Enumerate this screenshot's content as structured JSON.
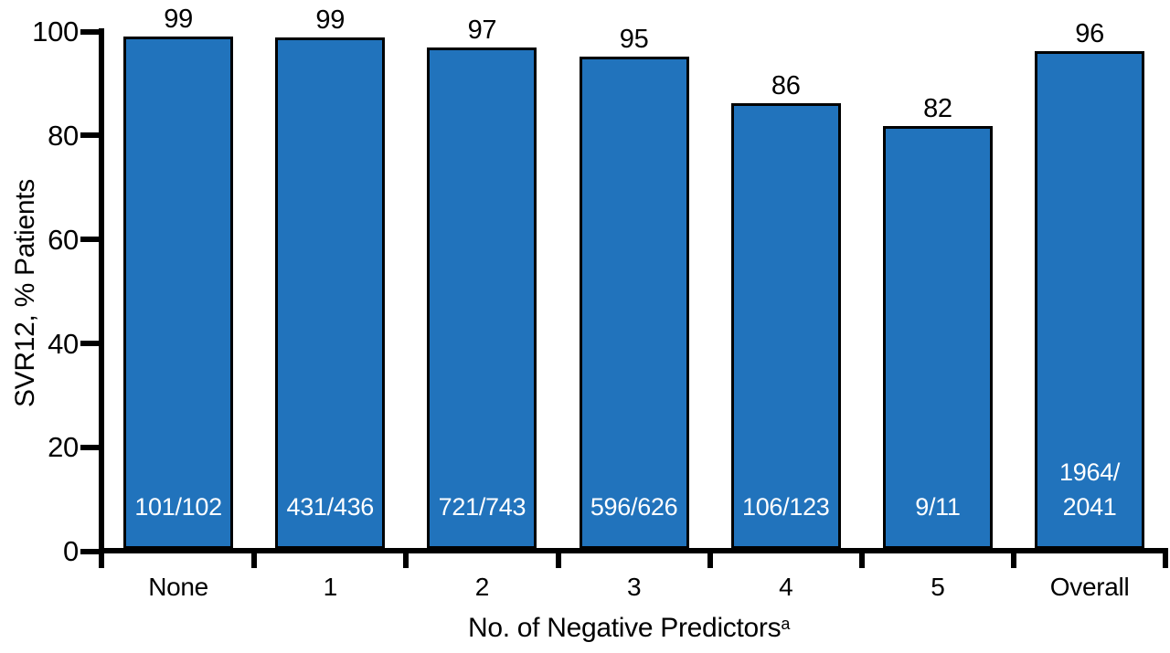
{
  "figure": {
    "background": "#ffffff"
  },
  "chart_data": {
    "type": "bar",
    "title": "",
    "xlabel": "No. of Negative Predictors",
    "xlabel_superscript": "a",
    "ylabel": "SVR12, % Patients",
    "ylim": [
      0,
      100
    ],
    "yticks": [
      0,
      20,
      40,
      60,
      80,
      100
    ],
    "categories": [
      "None",
      "1",
      "2",
      "3",
      "4",
      "5",
      "Overall"
    ],
    "values": [
      99,
      99,
      97,
      95,
      86,
      82,
      96
    ],
    "bar_heights_pct": [
      99.0,
      98.9,
      97.0,
      95.2,
      86.2,
      81.8,
      96.2
    ],
    "fractions": [
      "101/102",
      "431/436",
      "721/743",
      "596/626",
      "106/123",
      "9/11",
      "1964/2041"
    ],
    "fraction_label_lines": [
      [
        "101/102"
      ],
      [
        "431/436"
      ],
      [
        "721/743"
      ],
      [
        "596/626"
      ],
      [
        "106/123"
      ],
      [
        "9/11"
      ],
      [
        "1964/",
        "2041"
      ]
    ],
    "bar_color": "#2173bc",
    "bar_border_color": "#000000",
    "axis_color": "#000000",
    "value_label_color": "#000000",
    "fraction_label_color": "#ffffff",
    "grid": false,
    "legend_position": "none"
  }
}
